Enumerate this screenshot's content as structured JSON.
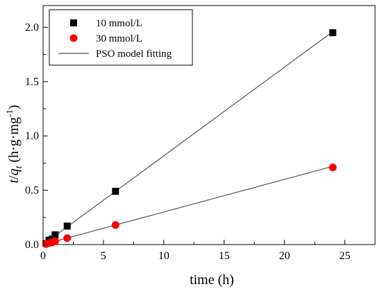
{
  "chart_data": {
    "type": "scatter",
    "xlabel": "time (h)",
    "ylabel": {
      "t": "t",
      "slash": "/",
      "q": "q",
      "sub": "t",
      "unit_open": " (h·g·mg",
      "sup": "-1",
      "unit_close": ")"
    },
    "xlim": [
      0,
      27.5
    ],
    "ylim": [
      0,
      2.2
    ],
    "xticks": [
      0,
      5,
      10,
      15,
      20,
      25
    ],
    "yticks": [
      0.0,
      0.5,
      1.0,
      1.5,
      2.0
    ],
    "xtick_labels": [
      "0",
      "5",
      "10",
      "15",
      "20",
      "25"
    ],
    "ytick_labels": [
      "0.0",
      "0.5",
      "1.0",
      "1.5",
      "2.0"
    ],
    "grid": false,
    "legend_position": "top-left",
    "series": [
      {
        "name": "10 mmol/L",
        "marker": "square",
        "color": "#000000",
        "x": [
          0.25,
          0.5,
          0.75,
          1,
          2,
          6,
          24
        ],
        "y": [
          0.01,
          0.04,
          0.05,
          0.09,
          0.17,
          0.49,
          1.95
        ]
      },
      {
        "name": "30 mmol/L",
        "marker": "circle",
        "color": "#ff0000",
        "x": [
          0.25,
          0.5,
          0.75,
          1,
          2,
          6,
          24
        ],
        "y": [
          0.005,
          0.015,
          0.02,
          0.03,
          0.06,
          0.18,
          0.71
        ]
      }
    ],
    "fits": [
      {
        "name": "PSO model fitting",
        "color": "#555555",
        "x": [
          0,
          24
        ],
        "y": [
          0.0,
          1.96
        ]
      },
      {
        "name": "PSO model fitting",
        "color": "#555555",
        "x": [
          0,
          24
        ],
        "y": [
          0.0,
          0.72
        ]
      }
    ],
    "legend": [
      {
        "label": "10 mmol/L",
        "marker": "square"
      },
      {
        "label": "30 mmol/L",
        "marker": "circle"
      },
      {
        "label": "PSO model fitting",
        "marker": "line"
      }
    ]
  }
}
